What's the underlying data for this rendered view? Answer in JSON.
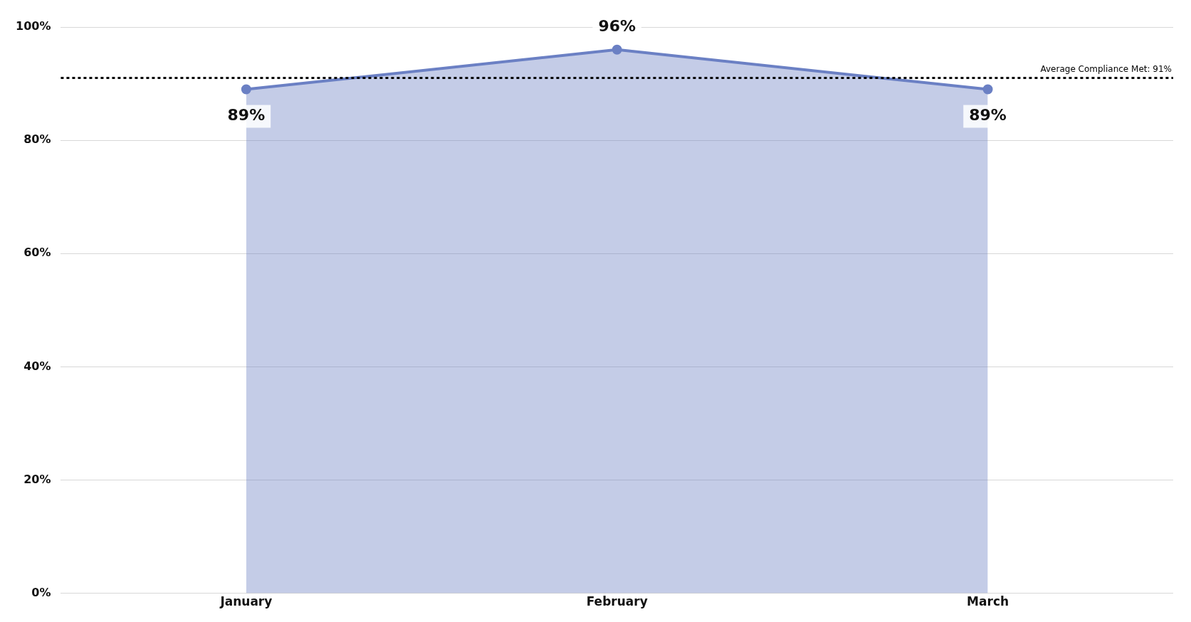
{
  "chart_data": {
    "type": "area",
    "categories": [
      "January",
      "February",
      "March"
    ],
    "series": [
      {
        "color": "#6b80c4",
        "values": [
          89,
          96,
          89
        ],
        "value_labels": [
          "89%",
          "96%",
          "89%"
        ]
      }
    ],
    "ylim": [
      0,
      100
    ],
    "yticks": [
      {
        "value": 0,
        "label": "0%"
      },
      {
        "value": 20,
        "label": "20%"
      },
      {
        "value": 40,
        "label": "40%"
      },
      {
        "value": 60,
        "label": "60%"
      },
      {
        "value": 80,
        "label": "80%"
      },
      {
        "value": 100,
        "label": "100%"
      }
    ],
    "grid": "y",
    "legend": false,
    "marker": "circle",
    "line_style": "solid",
    "ref_lines": [
      {
        "axis": "y",
        "value": 91,
        "label": "Average Compliance Met: 91%",
        "color": "#000000",
        "line_style": "dotted"
      }
    ]
  }
}
